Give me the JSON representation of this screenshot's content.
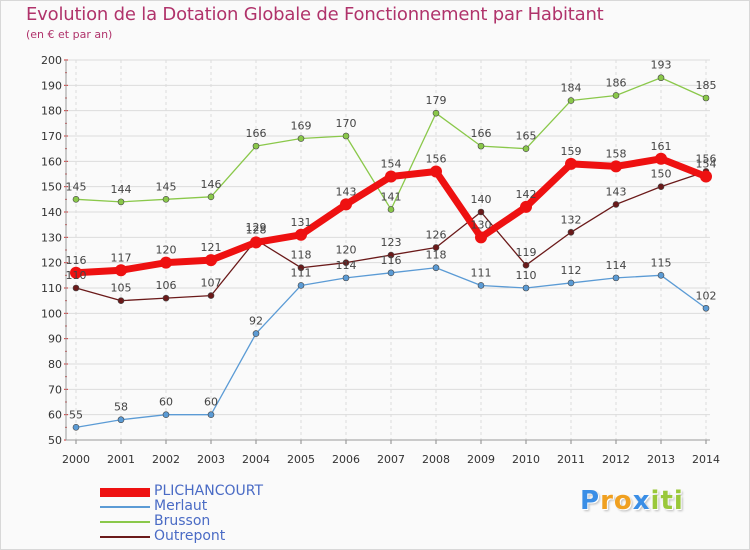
{
  "title": "Evolution de la Dotation Globale de Fonctionnement par Habitant",
  "subtitle": "(en € et par an)",
  "logo": {
    "letters": [
      "P",
      "r",
      "o",
      "x",
      "i",
      "t",
      "i"
    ],
    "colors": [
      "#3a8ee6",
      "#f0a020",
      "#f0a020",
      "#3a8ee6",
      "#9ac83a",
      "#9ac83a",
      "#9ac83a"
    ]
  },
  "chart_data": {
    "type": "line",
    "title": "Evolution de la Dotation Globale de Fonctionnement par Habitant",
    "subtitle": "(en € et par an)",
    "x": [
      2000,
      2001,
      2002,
      2003,
      2004,
      2005,
      2006,
      2007,
      2008,
      2009,
      2010,
      2011,
      2012,
      2013,
      2014
    ],
    "ylim": [
      50,
      200
    ],
    "yticks": [
      50,
      60,
      70,
      80,
      90,
      100,
      110,
      120,
      130,
      140,
      150,
      160,
      170,
      180,
      190,
      200
    ],
    "grid": true,
    "legend_position": "bottom-left",
    "series": [
      {
        "name": "PLICHANCOURT",
        "color": "#ee1111",
        "width": "thick",
        "values": [
          116,
          117,
          120,
          121,
          128,
          131,
          143,
          154,
          156,
          130,
          142,
          159,
          158,
          161,
          154
        ]
      },
      {
        "name": "Merlaut",
        "color": "#5b9bd5",
        "width": "thin",
        "values": [
          55,
          58,
          60,
          60,
          92,
          111,
          114,
          116,
          118,
          111,
          110,
          112,
          114,
          115,
          102
        ]
      },
      {
        "name": "Brusson",
        "color": "#8ac84a",
        "width": "thin",
        "values": [
          145,
          144,
          145,
          146,
          166,
          169,
          170,
          141,
          179,
          166,
          165,
          184,
          186,
          193,
          185
        ]
      },
      {
        "name": "Outrepont",
        "color": "#6b1a1a",
        "width": "thin",
        "values": [
          110,
          105,
          106,
          107,
          129,
          118,
          120,
          123,
          126,
          140,
          119,
          132,
          143,
          150,
          156
        ]
      }
    ]
  }
}
